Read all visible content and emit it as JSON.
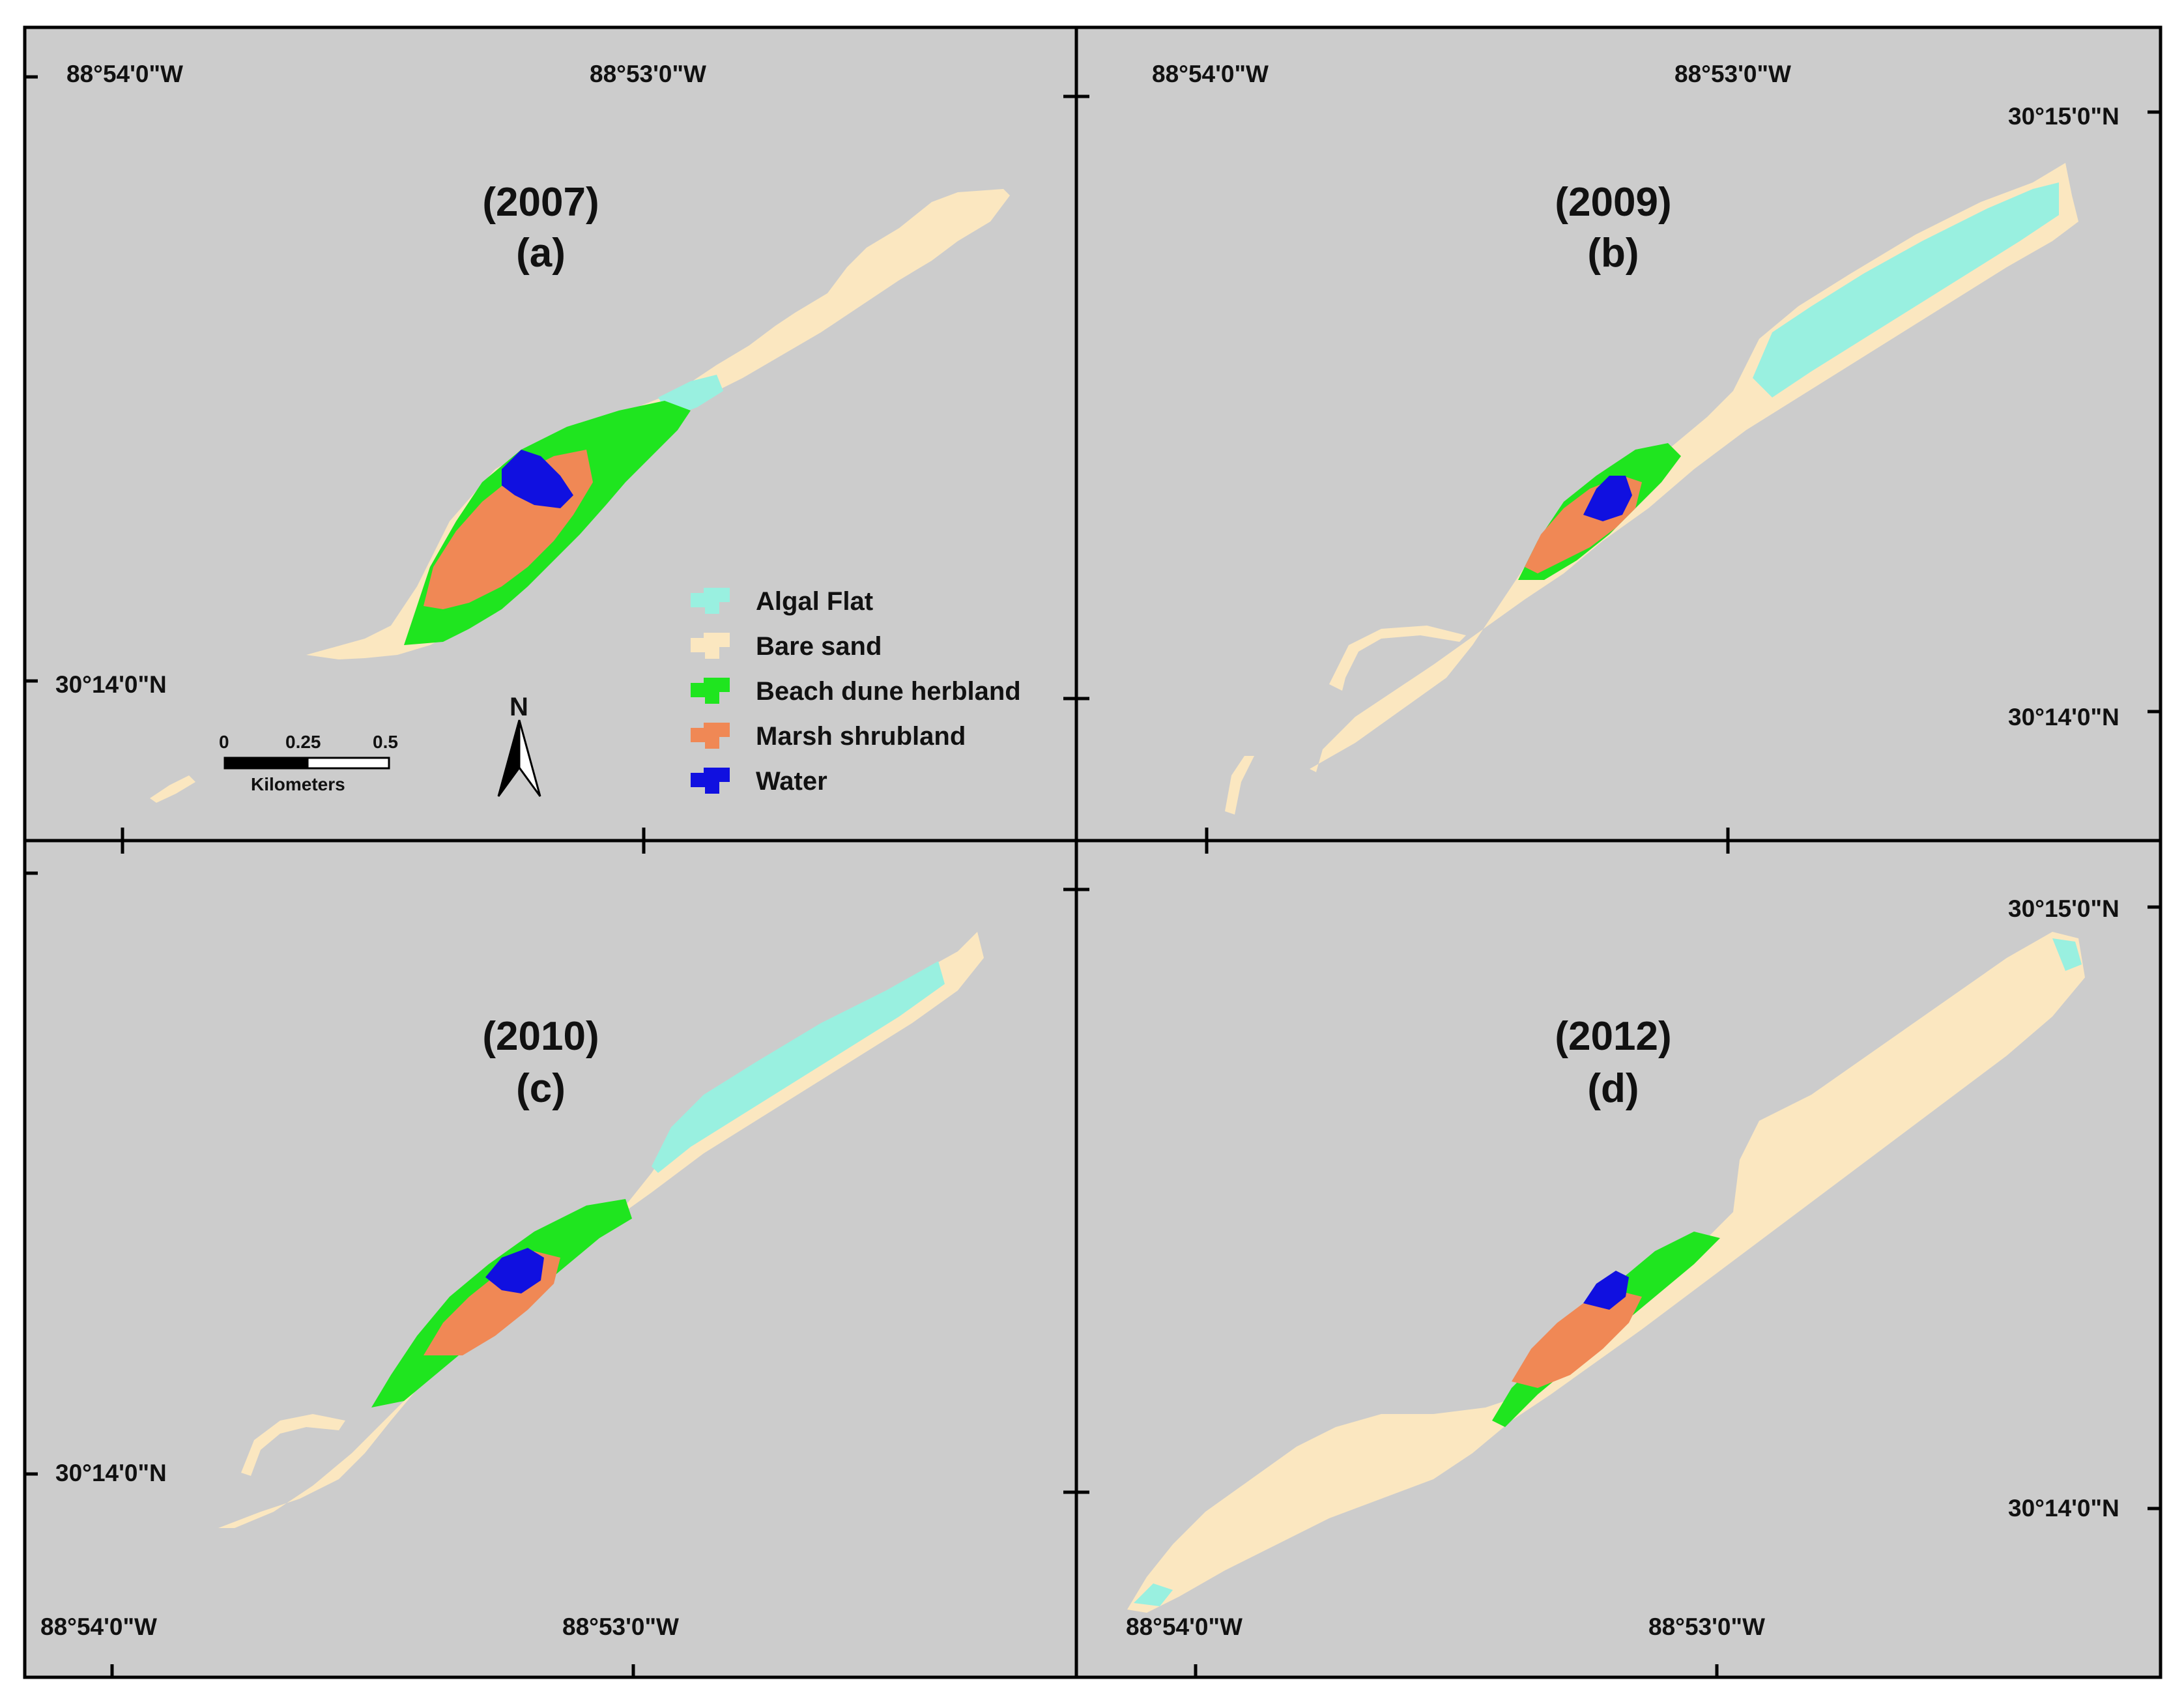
{
  "colors": {
    "background": "#cccccc",
    "frame": "#000000",
    "algal_flat": "#99f0e0",
    "bare_sand": "#fbe7c0",
    "beach_dune_herbland": "#1fe51f",
    "marsh_shrubland": "#f08855",
    "water": "#1010e0"
  },
  "panels": [
    {
      "year_label": "(2007)",
      "letter_label": "(a)",
      "lon_labels": [
        "88°54'0\"W",
        "88°53'0\"W"
      ],
      "lat_labels": [
        "30°14'0\"N"
      ]
    },
    {
      "year_label": "(2009)",
      "letter_label": "(b)",
      "lon_labels": [
        "88°54'0\"W",
        "88°53'0\"W"
      ],
      "lat_labels": [
        "30°15'0\"N",
        "30°14'0\"N"
      ]
    },
    {
      "year_label": "(2010)",
      "letter_label": "(c)",
      "lon_labels": [
        "88°54'0\"W",
        "88°53'0\"W"
      ],
      "lat_labels": [
        "30°14'0\"N"
      ]
    },
    {
      "year_label": "(2012)",
      "letter_label": "(d)",
      "lon_labels": [
        "88°54'0\"W",
        "88°53'0\"W"
      ],
      "lat_labels": [
        "30°15'0\"N",
        "30°14'0\"N"
      ]
    }
  ],
  "legend": {
    "items": [
      {
        "label": "Algal Flat",
        "color_key": "algal_flat"
      },
      {
        "label": "Bare sand",
        "color_key": "bare_sand"
      },
      {
        "label": "Beach dune herbland",
        "color_key": "beach_dune_herbland"
      },
      {
        "label": "Marsh shrubland",
        "color_key": "marsh_shrubland"
      },
      {
        "label": "Water",
        "color_key": "water"
      }
    ]
  },
  "scale_bar": {
    "ticks": [
      "0",
      "0.25",
      "0.5"
    ],
    "unit": "Kilometers"
  },
  "north_arrow": {
    "label": "N"
  }
}
